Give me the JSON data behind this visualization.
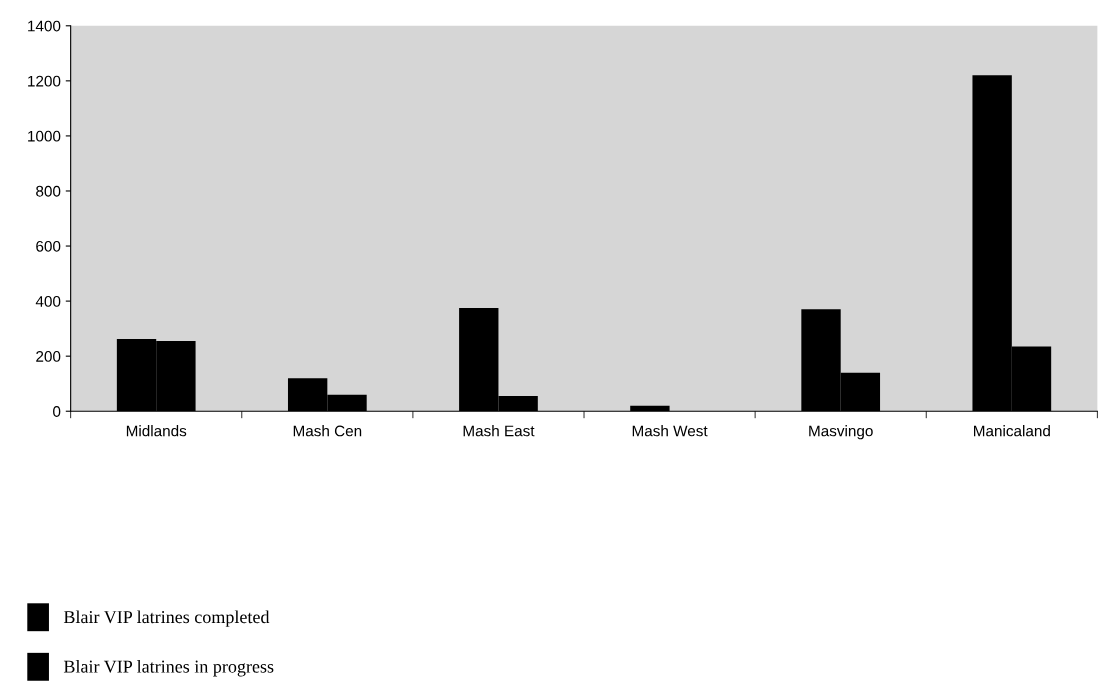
{
  "chart_data": {
    "type": "bar",
    "categories": [
      "Midlands",
      "Mash Cen",
      "Mash East",
      "Mash West",
      "Masvingo",
      "Manicaland"
    ],
    "series": [
      {
        "name": "Blair VIP latrines completed",
        "color": "#000000",
        "values": [
          262,
          120,
          375,
          20,
          370,
          1220
        ]
      },
      {
        "name": "Blair VIP latrines in progress",
        "color": "#000000",
        "values": [
          255,
          60,
          55,
          0,
          140,
          235
        ]
      }
    ],
    "ylim": [
      0,
      1400
    ],
    "yticks": [
      0,
      200,
      400,
      600,
      800,
      1000,
      1200,
      1400
    ],
    "grid": false,
    "legend": "bottom left"
  }
}
